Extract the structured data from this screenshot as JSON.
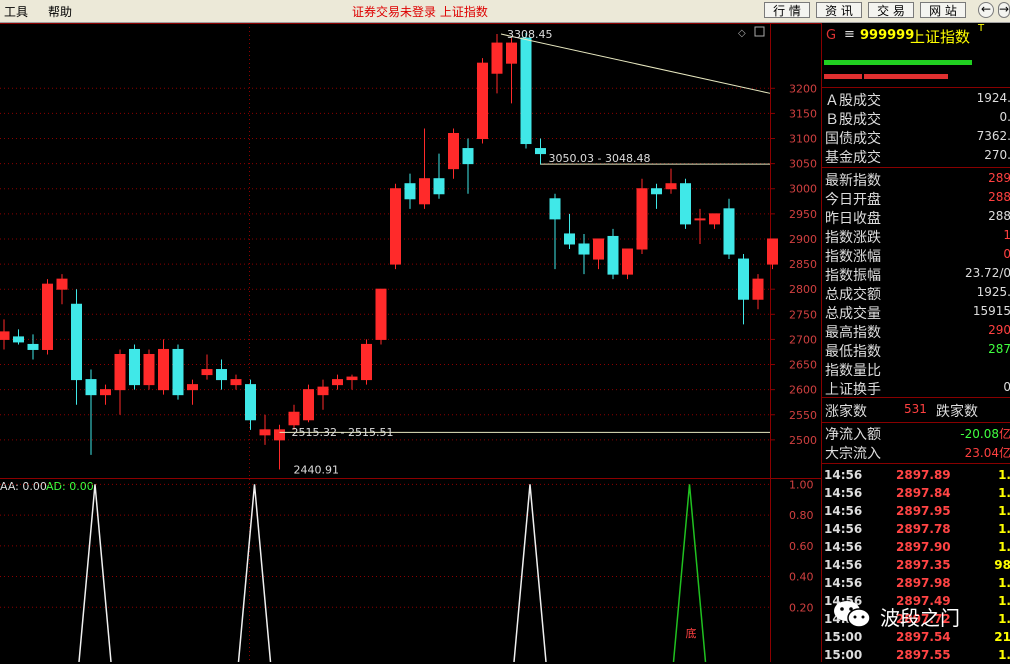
{
  "menu": {
    "tools": "工具",
    "help": "帮助",
    "status": "证券交易未登录  上证指数"
  },
  "toolbar": {
    "quote": "行 情",
    "info": "资 讯",
    "trade": "交 易",
    "web": "网 站"
  },
  "chart_data": {
    "type": "candlestick",
    "price_axis_ticks": [
      "3200",
      "3150",
      "3100",
      "3050",
      "3000",
      "2950",
      "2900",
      "2850",
      "2800",
      "2750",
      "2700",
      "2650",
      "2600",
      "2550",
      "2500"
    ],
    "ylim": [
      2440,
      3330
    ],
    "candles": [
      {
        "o": 2700,
        "h": 2740,
        "l": 2680,
        "c": 2715
      },
      {
        "o": 2705,
        "h": 2720,
        "l": 2690,
        "c": 2695
      },
      {
        "o": 2690,
        "h": 2710,
        "l": 2660,
        "c": 2680
      },
      {
        "o": 2680,
        "h": 2820,
        "l": 2670,
        "c": 2810
      },
      {
        "o": 2800,
        "h": 2830,
        "l": 2770,
        "c": 2820
      },
      {
        "o": 2770,
        "h": 2800,
        "l": 2570,
        "c": 2620
      },
      {
        "o": 2620,
        "h": 2640,
        "l": 2470,
        "c": 2590
      },
      {
        "o": 2590,
        "h": 2610,
        "l": 2570,
        "c": 2600
      },
      {
        "o": 2600,
        "h": 2680,
        "l": 2550,
        "c": 2670
      },
      {
        "o": 2680,
        "h": 2690,
        "l": 2600,
        "c": 2610
      },
      {
        "o": 2610,
        "h": 2680,
        "l": 2600,
        "c": 2670
      },
      {
        "o": 2600,
        "h": 2700,
        "l": 2590,
        "c": 2680
      },
      {
        "o": 2680,
        "h": 2690,
        "l": 2580,
        "c": 2590
      },
      {
        "o": 2600,
        "h": 2620,
        "l": 2570,
        "c": 2610
      },
      {
        "o": 2630,
        "h": 2670,
        "l": 2620,
        "c": 2640
      },
      {
        "o": 2640,
        "h": 2660,
        "l": 2600,
        "c": 2620
      },
      {
        "o": 2610,
        "h": 2630,
        "l": 2600,
        "c": 2620
      },
      {
        "o": 2610,
        "h": 2620,
        "l": 2520,
        "c": 2540
      },
      {
        "o": 2510,
        "h": 2550,
        "l": 2490,
        "c": 2520
      },
      {
        "o": 2500,
        "h": 2530,
        "l": 2441,
        "c": 2520
      },
      {
        "o": 2530,
        "h": 2570,
        "l": 2520,
        "c": 2555
      },
      {
        "o": 2540,
        "h": 2610,
        "l": 2535,
        "c": 2600
      },
      {
        "o": 2590,
        "h": 2620,
        "l": 2560,
        "c": 2605
      },
      {
        "o": 2610,
        "h": 2630,
        "l": 2600,
        "c": 2620
      },
      {
        "o": 2620,
        "h": 2630,
        "l": 2600,
        "c": 2625
      },
      {
        "o": 2620,
        "h": 2700,
        "l": 2610,
        "c": 2690
      },
      {
        "o": 2700,
        "h": 2800,
        "l": 2690,
        "c": 2800
      },
      {
        "o": 2850,
        "h": 3010,
        "l": 2840,
        "c": 3000
      },
      {
        "o": 3010,
        "h": 3030,
        "l": 2960,
        "c": 2980
      },
      {
        "o": 2970,
        "h": 3120,
        "l": 2960,
        "c": 3020
      },
      {
        "o": 3020,
        "h": 3070,
        "l": 2980,
        "c": 2990
      },
      {
        "o": 3040,
        "h": 3120,
        "l": 3020,
        "c": 3110
      },
      {
        "o": 3080,
        "h": 3100,
        "l": 2990,
        "c": 3050
      },
      {
        "o": 3100,
        "h": 3260,
        "l": 3090,
        "c": 3250
      },
      {
        "o": 3230,
        "h": 3308,
        "l": 3190,
        "c": 3290
      },
      {
        "o": 3250,
        "h": 3300,
        "l": 3170,
        "c": 3290
      },
      {
        "o": 3300,
        "h": 3310,
        "l": 3080,
        "c": 3090
      },
      {
        "o": 3080,
        "h": 3100,
        "l": 3048,
        "c": 3070
      },
      {
        "o": 2980,
        "h": 2990,
        "l": 2840,
        "c": 2940
      },
      {
        "o": 2910,
        "h": 2950,
        "l": 2880,
        "c": 2890
      },
      {
        "o": 2890,
        "h": 2910,
        "l": 2830,
        "c": 2870
      },
      {
        "o": 2860,
        "h": 2900,
        "l": 2840,
        "c": 2900
      },
      {
        "o": 2905,
        "h": 2920,
        "l": 2820,
        "c": 2830
      },
      {
        "o": 2830,
        "h": 2880,
        "l": 2820,
        "c": 2880
      },
      {
        "o": 2880,
        "h": 3020,
        "l": 2870,
        "c": 3000
      },
      {
        "o": 3000,
        "h": 3010,
        "l": 2960,
        "c": 2990
      },
      {
        "o": 3000,
        "h": 3040,
        "l": 2990,
        "c": 3010
      },
      {
        "o": 3010,
        "h": 3020,
        "l": 2920,
        "c": 2930
      },
      {
        "o": 2940,
        "h": 2960,
        "l": 2890,
        "c": 2940
      },
      {
        "o": 2930,
        "h": 2950,
        "l": 2920,
        "c": 2950
      },
      {
        "o": 2960,
        "h": 2980,
        "l": 2860,
        "c": 2870
      },
      {
        "o": 2860,
        "h": 2870,
        "l": 2730,
        "c": 2780
      },
      {
        "o": 2780,
        "h": 2830,
        "l": 2760,
        "c": 2820
      },
      {
        "o": 2850,
        "h": 2900,
        "l": 2840,
        "c": 2900
      }
    ],
    "annotations": [
      "3308.45",
      "3050.03 - 3048.48",
      "2515.32 - 2515.51",
      "2440.91"
    ],
    "indicator": {
      "legend_label": "AA: 0.00",
      "legend_ad": "AD: 0.00",
      "ticks": [
        "1.00",
        "0.80",
        "0.60",
        "0.40",
        "0.20"
      ],
      "ylim": [
        0,
        1.1
      ],
      "peaks": [
        {
          "i": 6,
          "v": 1.0,
          "color": "white"
        },
        {
          "i": 17,
          "v": 1.0,
          "color": "white"
        },
        {
          "i": 36,
          "v": 1.0,
          "color": "white"
        },
        {
          "i": 47,
          "v": 1.0,
          "color": "green"
        }
      ],
      "label": "底"
    }
  },
  "sidebar": {
    "g": "G",
    "eq": "≡",
    "code": "999999",
    "name": "上证指数",
    "sup": "T",
    "rows1": [
      {
        "label": "Ａ股成交",
        "value": "1924.",
        "color": "#dddddd"
      },
      {
        "label": "Ｂ股成交",
        "value": "0.",
        "color": "#dddddd"
      },
      {
        "label": "国债成交",
        "value": "7362.",
        "color": "#dddddd"
      },
      {
        "label": "基金成交",
        "value": "270.",
        "color": "#dddddd"
      }
    ],
    "rows2": [
      {
        "label": "最新指数",
        "value": "289",
        "color": "#ff4040"
      },
      {
        "label": "今日开盘",
        "value": "288",
        "color": "#ff4040"
      },
      {
        "label": "昨日收盘",
        "value": "288",
        "color": "#dddddd"
      },
      {
        "label": "指数涨跌",
        "value": "1",
        "color": "#ff4040"
      },
      {
        "label": "指数涨幅",
        "value": "0",
        "color": "#ff4040"
      },
      {
        "label": "指数振幅",
        "value": "23.72/0",
        "color": "#dddddd"
      },
      {
        "label": "总成交额",
        "value": "1925.",
        "color": "#dddddd"
      },
      {
        "label": "总成交量",
        "value": "15915",
        "color": "#dddddd"
      },
      {
        "label": "最高指数",
        "value": "290",
        "color": "#ff4040"
      },
      {
        "label": "最低指数",
        "value": "287",
        "color": "#40ff40"
      },
      {
        "label": "指数量比",
        "value": "",
        "color": "#dddddd"
      },
      {
        "label": "上证换手",
        "value": "0",
        "color": "#dddddd"
      }
    ],
    "up_label": "涨家数",
    "up_value": "531",
    "down_label": "跌家数",
    "net_label": "净流入额",
    "net_value": "-20.08",
    "net_unit": "亿",
    "block_label": "大宗流入",
    "block_value": "23.04",
    "block_unit": "亿",
    "ticks": [
      {
        "t": "14:56",
        "p": "2897.89",
        "v": "1."
      },
      {
        "t": "14:56",
        "p": "2897.84",
        "v": "1."
      },
      {
        "t": "14:56",
        "p": "2897.95",
        "v": "1."
      },
      {
        "t": "14:56",
        "p": "2897.78",
        "v": "1."
      },
      {
        "t": "14:56",
        "p": "2897.90",
        "v": "1."
      },
      {
        "t": "14:56",
        "p": "2897.35",
        "v": "98"
      },
      {
        "t": "14:56",
        "p": "2897.98",
        "v": "1."
      },
      {
        "t": "14:56",
        "p": "2897.49",
        "v": "1."
      },
      {
        "t": "14:56",
        "p": "2897.72",
        "v": "1."
      },
      {
        "t": "15:00",
        "p": "2897.54",
        "v": "21"
      },
      {
        "t": "15:00",
        "p": "2897.55",
        "v": "1."
      }
    ]
  },
  "watermark": {
    "text": "波段之门"
  },
  "colors": {
    "up": "#ff2a2a",
    "down": "#40e8e8",
    "grid": "#8b0000",
    "axis_text": "#d04040"
  }
}
